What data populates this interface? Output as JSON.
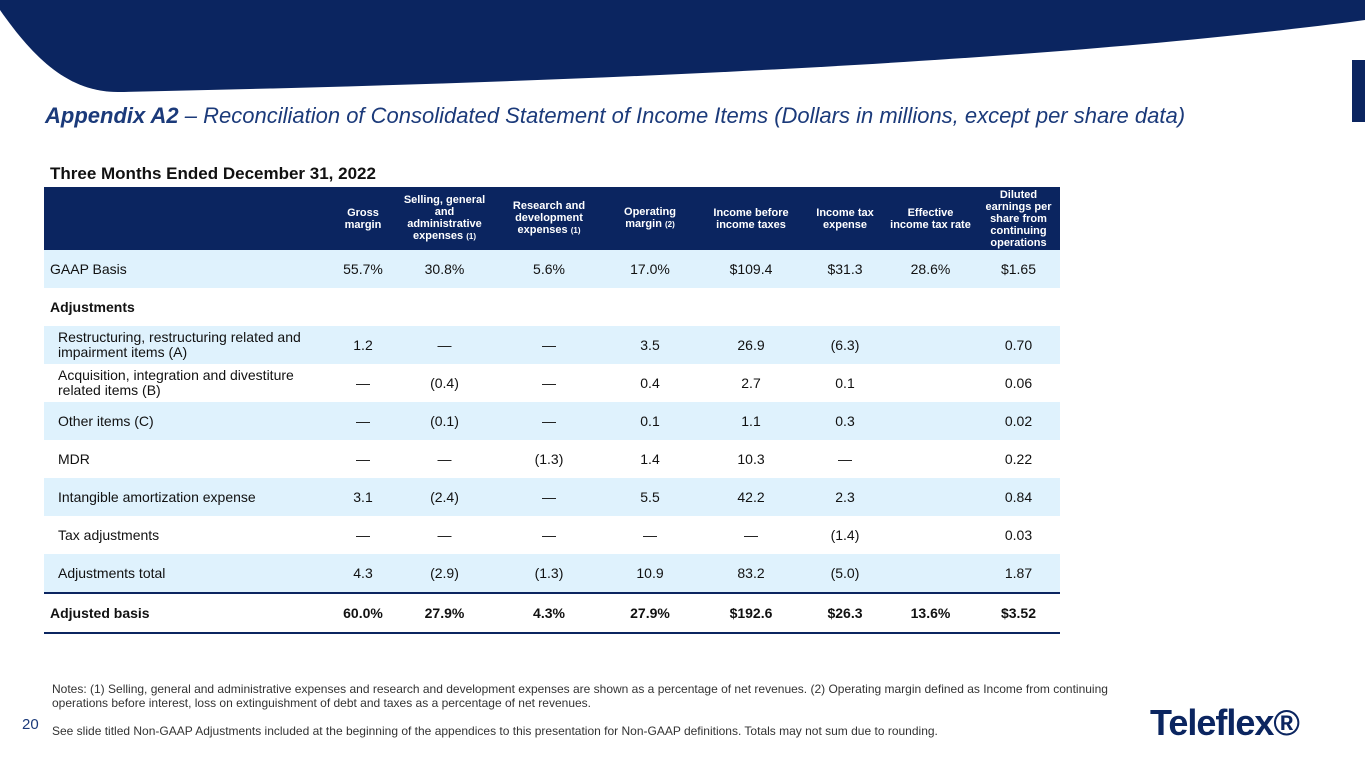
{
  "header": {
    "title_bold": "Appendix A2",
    "title_rest": " – Reconciliation of Consolidated Statement of Income Items (Dollars in millions, except per share data)",
    "period": "Three Months Ended December 31, 2022"
  },
  "table": {
    "columns": [
      {
        "label": "Gross margin",
        "note": ""
      },
      {
        "label": "Selling, general and administrative expenses",
        "note": "(1)"
      },
      {
        "label": "Research and development expenses",
        "note": "(1)"
      },
      {
        "label": "Operating margin",
        "note": "(2)"
      },
      {
        "label": "Income before income taxes",
        "note": ""
      },
      {
        "label": "Income tax expense",
        "note": ""
      },
      {
        "label": "Effective income tax rate",
        "note": ""
      },
      {
        "label": "Diluted earnings per share from continuing operations",
        "note": ""
      }
    ],
    "gaap": {
      "label": "GAAP Basis",
      "values": [
        "55.7%",
        "30.8%",
        "5.6%",
        "17.0%",
        "$109.4",
        "$31.3",
        "28.6%",
        "$1.65"
      ]
    },
    "adjustments_heading": "Adjustments",
    "rows": [
      {
        "label": "Restructuring, restructuring related and impairment items (A)",
        "values": [
          "1.2",
          "—",
          "—",
          "3.5",
          "26.9",
          "(6.3)",
          "",
          "0.70"
        ]
      },
      {
        "label": "Acquisition, integration and divestiture related items (B)",
        "values": [
          "—",
          "(0.4)",
          "—",
          "0.4",
          "2.7",
          "0.1",
          "",
          "0.06"
        ]
      },
      {
        "label": "Other items (C)",
        "values": [
          "—",
          "(0.1)",
          "—",
          "0.1",
          "1.1",
          "0.3",
          "",
          "0.02"
        ]
      },
      {
        "label": "MDR",
        "values": [
          "—",
          "—",
          "(1.3)",
          "1.4",
          "10.3",
          "—",
          "",
          "0.22"
        ]
      },
      {
        "label": "Intangible amortization expense",
        "values": [
          "3.1",
          "(2.4)",
          "—",
          "5.5",
          "42.2",
          "2.3",
          "",
          "0.84"
        ]
      },
      {
        "label": "Tax adjustments",
        "values": [
          "—",
          "—",
          "—",
          "—",
          "—",
          "(1.4)",
          "",
          "0.03"
        ]
      },
      {
        "label": "Adjustments total",
        "values": [
          "4.3",
          "(2.9)",
          "(1.3)",
          "10.9",
          "83.2",
          "(5.0)",
          "",
          "1.87"
        ]
      }
    ],
    "adjusted": {
      "label": "Adjusted basis",
      "values": [
        "60.0%",
        "27.9%",
        "4.3%",
        "27.9%",
        "$192.6",
        "$26.3",
        "13.6%",
        "$3.52"
      ]
    }
  },
  "notes": {
    "line1": "Notes: (1) Selling, general and administrative expenses and research and development expenses are shown as a percentage of net revenues.  (2) Operating margin defined as Income from continuing operations before interest, loss on extinguishment of debt and taxes as a percentage of net revenues.",
    "line2": "See slide titled Non-GAAP Adjustments included at the beginning of the appendices to this presentation for Non-GAAP definitions. Totals may not sum due to rounding."
  },
  "page_number": "20",
  "logo_text": "Teleflex®",
  "colors": {
    "navy": "#0b2560",
    "shade": "#dff2fd",
    "title": "#1b3a7a"
  }
}
